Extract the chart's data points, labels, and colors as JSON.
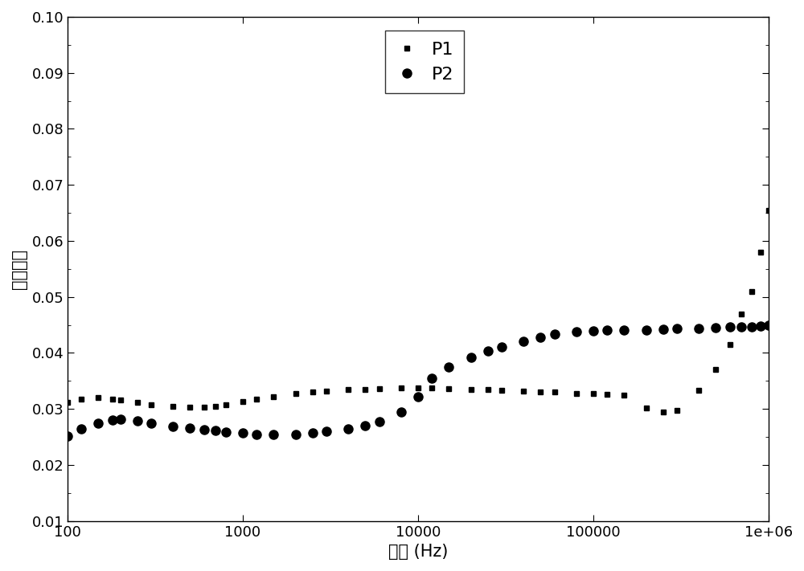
{
  "title": "",
  "xlabel": "频率 (Hz)",
  "ylabel": "介电损耗",
  "xlim": [
    100,
    1000000
  ],
  "ylim": [
    0.01,
    0.1
  ],
  "yticks": [
    0.01,
    0.02,
    0.03,
    0.04,
    0.05,
    0.06,
    0.07,
    0.08,
    0.09,
    0.1
  ],
  "legend_labels": [
    "P1",
    "P2"
  ],
  "P1_x": [
    100,
    120,
    150,
    180,
    200,
    250,
    300,
    400,
    500,
    600,
    700,
    800,
    1000,
    1200,
    1500,
    2000,
    2500,
    3000,
    4000,
    5000,
    6000,
    8000,
    10000,
    12000,
    15000,
    20000,
    25000,
    30000,
    40000,
    50000,
    60000,
    80000,
    100000,
    120000,
    150000,
    200000,
    250000,
    300000,
    400000,
    500000,
    600000,
    700000,
    800000,
    900000,
    1000000
  ],
  "P1_y": [
    0.0312,
    0.0318,
    0.032,
    0.0318,
    0.0316,
    0.0312,
    0.0308,
    0.0305,
    0.0303,
    0.0303,
    0.0305,
    0.0308,
    0.0313,
    0.0318,
    0.0322,
    0.0327,
    0.033,
    0.0332,
    0.0334,
    0.0335,
    0.0336,
    0.0337,
    0.0338,
    0.0337,
    0.0336,
    0.0335,
    0.0334,
    0.0333,
    0.0332,
    0.0331,
    0.033,
    0.0328,
    0.0327,
    0.0326,
    0.0325,
    0.0302,
    0.0295,
    0.0298,
    0.0333,
    0.037,
    0.0415,
    0.047,
    0.051,
    0.058,
    0.0655
  ],
  "P2_x": [
    100,
    120,
    150,
    180,
    200,
    250,
    300,
    400,
    500,
    600,
    700,
    800,
    1000,
    1200,
    1500,
    2000,
    2500,
    3000,
    4000,
    5000,
    6000,
    8000,
    10000,
    12000,
    15000,
    20000,
    25000,
    30000,
    40000,
    50000,
    60000,
    80000,
    100000,
    120000,
    150000,
    200000,
    250000,
    300000,
    400000,
    500000,
    600000,
    700000,
    800000,
    900000,
    1000000
  ],
  "P2_y": [
    0.0252,
    0.0265,
    0.0275,
    0.028,
    0.0281,
    0.0279,
    0.0274,
    0.0269,
    0.0266,
    0.0263,
    0.0261,
    0.0259,
    0.0257,
    0.0255,
    0.0254,
    0.0255,
    0.0257,
    0.026,
    0.0264,
    0.027,
    0.0278,
    0.0295,
    0.0322,
    0.0355,
    0.0375,
    0.0392,
    0.0403,
    0.041,
    0.042,
    0.0428,
    0.0433,
    0.0438,
    0.044,
    0.0441,
    0.0441,
    0.0441,
    0.0442,
    0.0443,
    0.0444,
    0.0445,
    0.0446,
    0.0447,
    0.0447,
    0.0448,
    0.045
  ],
  "marker_color": "#000000",
  "background_color": "#ffffff",
  "p1_marker": "s",
  "p2_marker": "o",
  "p1_markersize": 5,
  "p2_markersize": 8,
  "fontsize_labels": 15,
  "fontsize_ticks": 13,
  "fontsize_legend": 16
}
